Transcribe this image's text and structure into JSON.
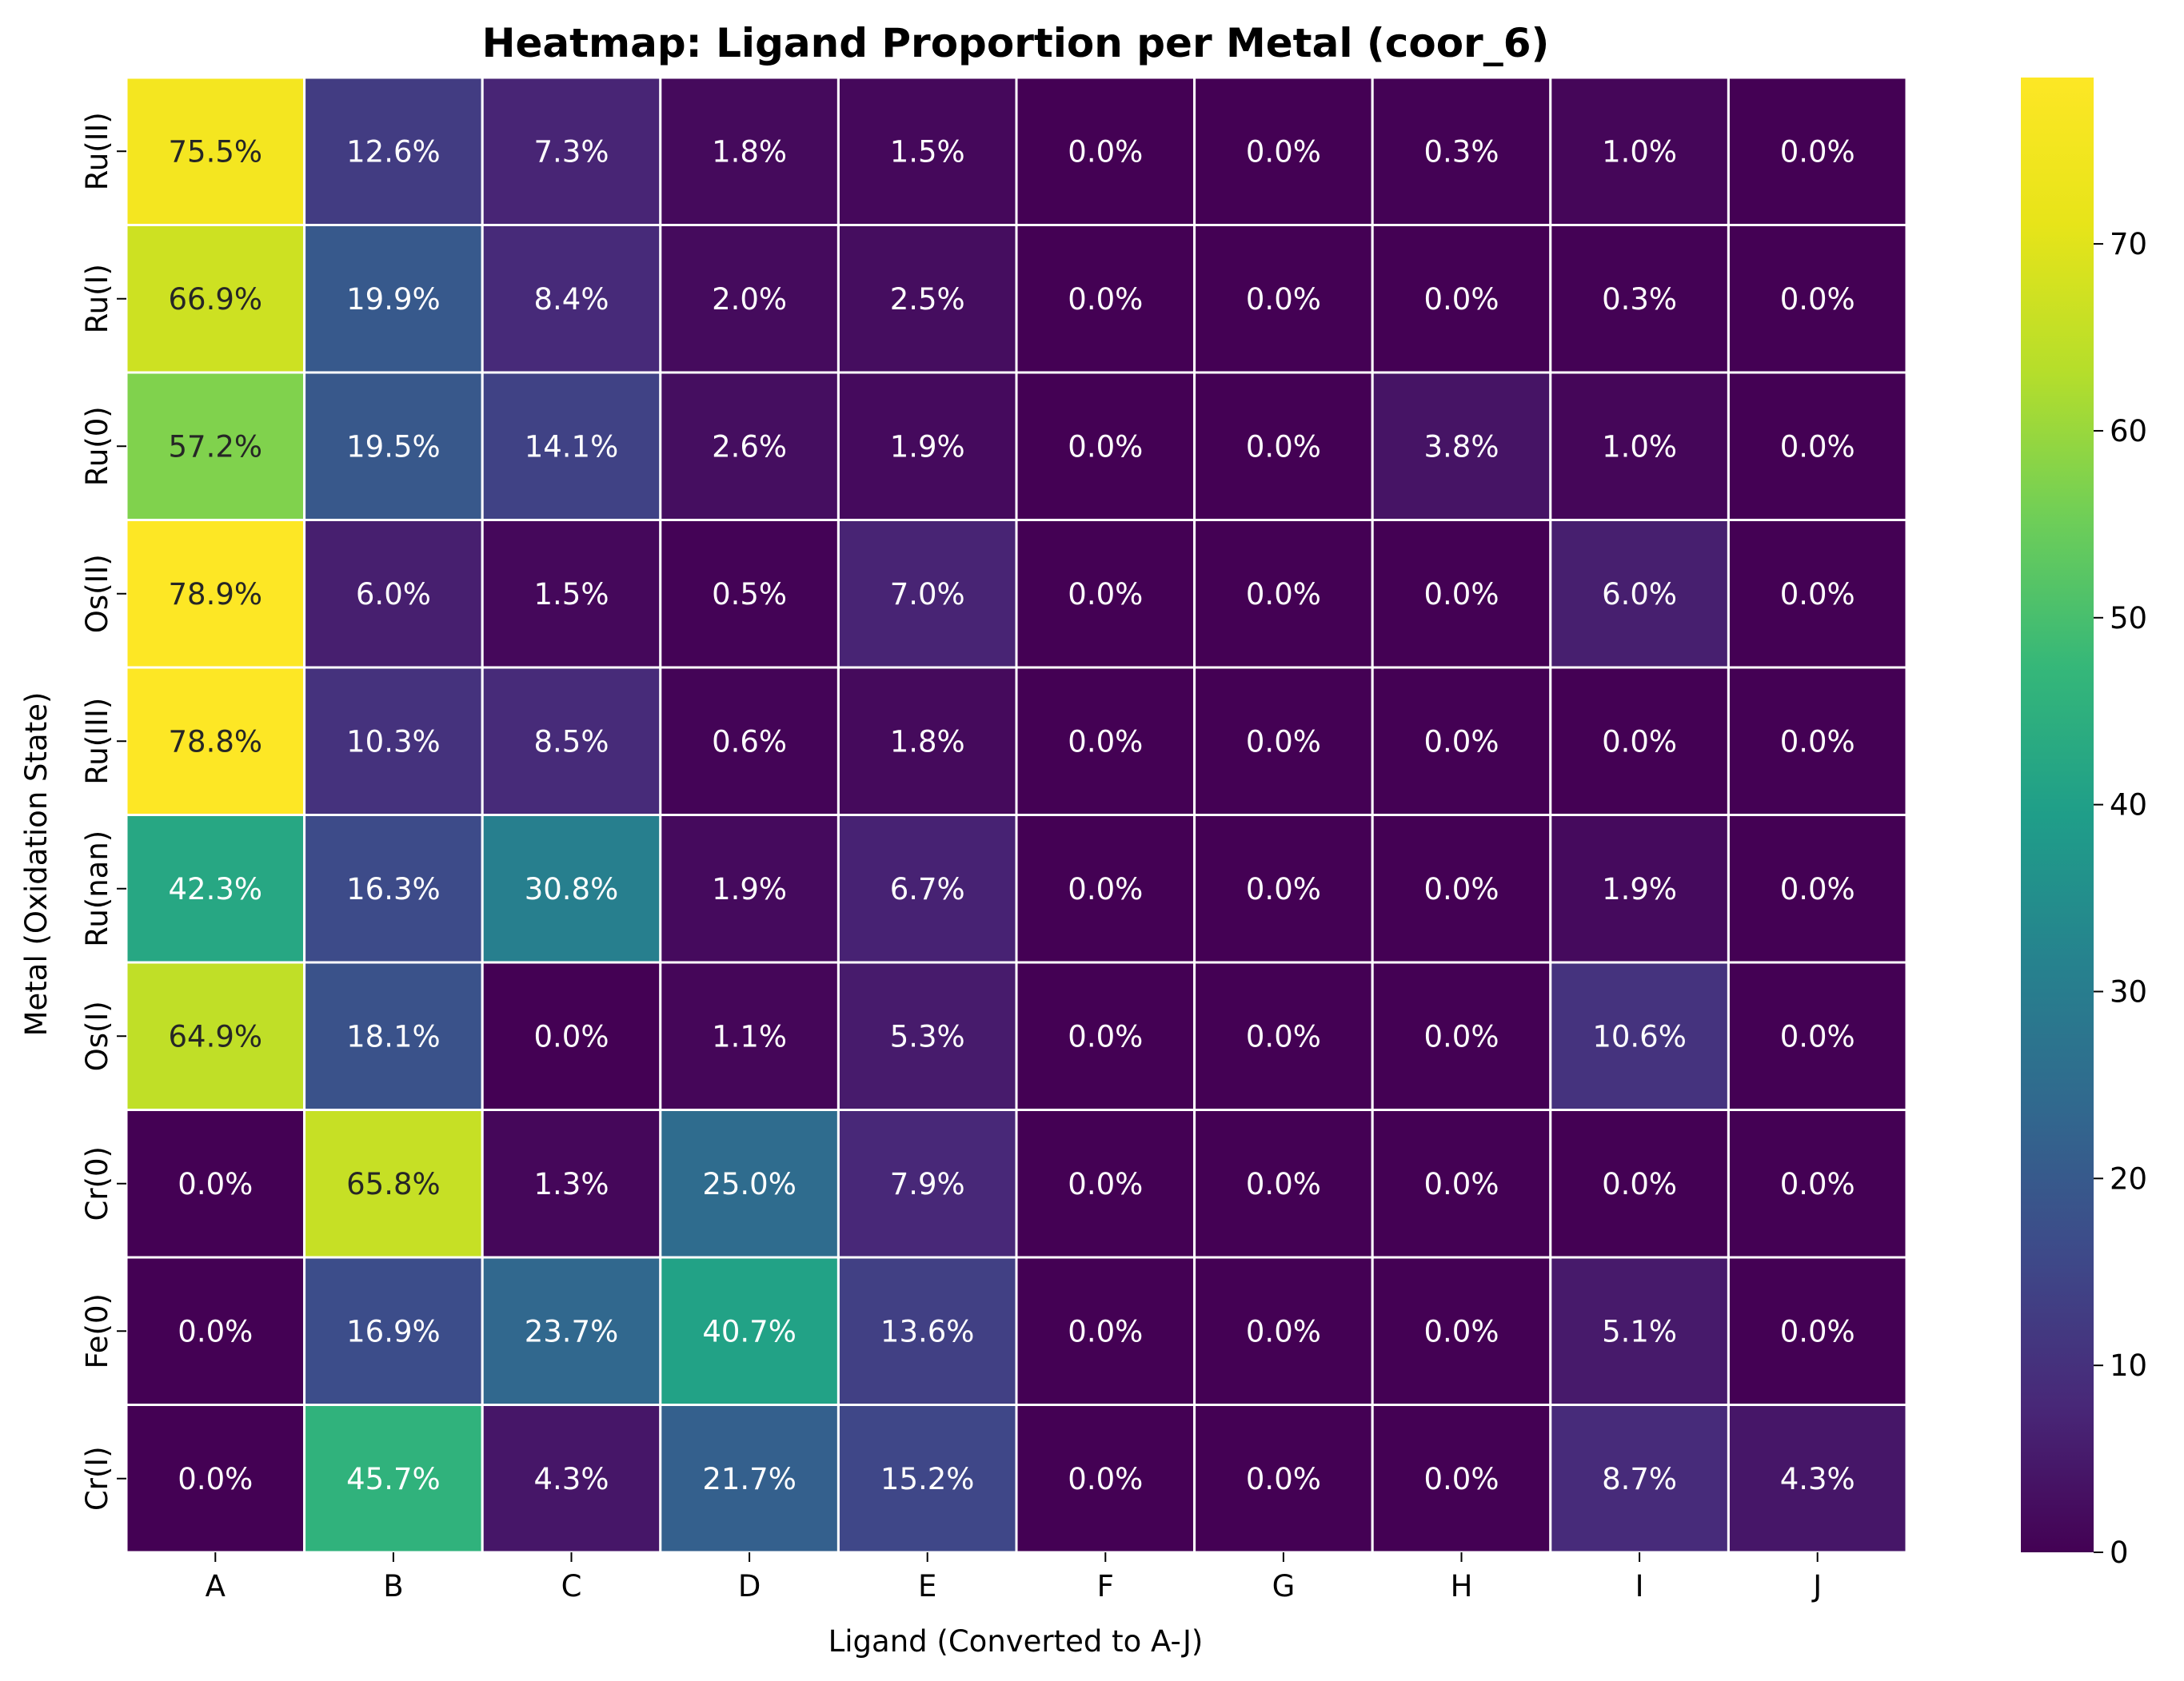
{
  "chart_data": {
    "type": "heatmap",
    "title": "Heatmap: Ligand Proportion per Metal (coor_6)",
    "xlabel": "Ligand (Converted to A-J)",
    "ylabel": "Metal (Oxidation State)",
    "columns": [
      "A",
      "B",
      "C",
      "D",
      "E",
      "F",
      "G",
      "H",
      "I",
      "J"
    ],
    "rows": [
      "Ru(II)",
      "Ru(I)",
      "Ru(0)",
      "Os(II)",
      "Ru(III)",
      "Ru(nan)",
      "Os(I)",
      "Cr(0)",
      "Fe(0)",
      "Cr(I)"
    ],
    "values": [
      [
        75.5,
        12.6,
        7.3,
        1.8,
        1.5,
        0.0,
        0.0,
        0.3,
        1.0,
        0.0
      ],
      [
        66.9,
        19.9,
        8.4,
        2.0,
        2.5,
        0.0,
        0.0,
        0.0,
        0.3,
        0.0
      ],
      [
        57.2,
        19.5,
        14.1,
        2.6,
        1.9,
        0.0,
        0.0,
        3.8,
        1.0,
        0.0
      ],
      [
        78.9,
        6.0,
        1.5,
        0.5,
        7.0,
        0.0,
        0.0,
        0.0,
        6.0,
        0.0
      ],
      [
        78.8,
        10.3,
        8.5,
        0.6,
        1.8,
        0.0,
        0.0,
        0.0,
        0.0,
        0.0
      ],
      [
        42.3,
        16.3,
        30.8,
        1.9,
        6.7,
        0.0,
        0.0,
        0.0,
        1.9,
        0.0
      ],
      [
        64.9,
        18.1,
        0.0,
        1.1,
        5.3,
        0.0,
        0.0,
        0.0,
        10.6,
        0.0
      ],
      [
        0.0,
        65.8,
        1.3,
        25.0,
        7.9,
        0.0,
        0.0,
        0.0,
        0.0,
        0.0
      ],
      [
        0.0,
        16.9,
        23.7,
        40.7,
        13.6,
        0.0,
        0.0,
        0.0,
        5.1,
        0.0
      ],
      [
        0.0,
        45.7,
        4.3,
        21.7,
        15.2,
        0.0,
        0.0,
        0.0,
        8.7,
        4.3
      ]
    ],
    "value_format_suffix": "%",
    "colormap": "viridis",
    "color_range": [
      0,
      78.9
    ],
    "colorbar_ticks": [
      0,
      10,
      20,
      30,
      40,
      50,
      60,
      70
    ],
    "grid_line_color": "#ffffff",
    "legend_position": "right"
  }
}
